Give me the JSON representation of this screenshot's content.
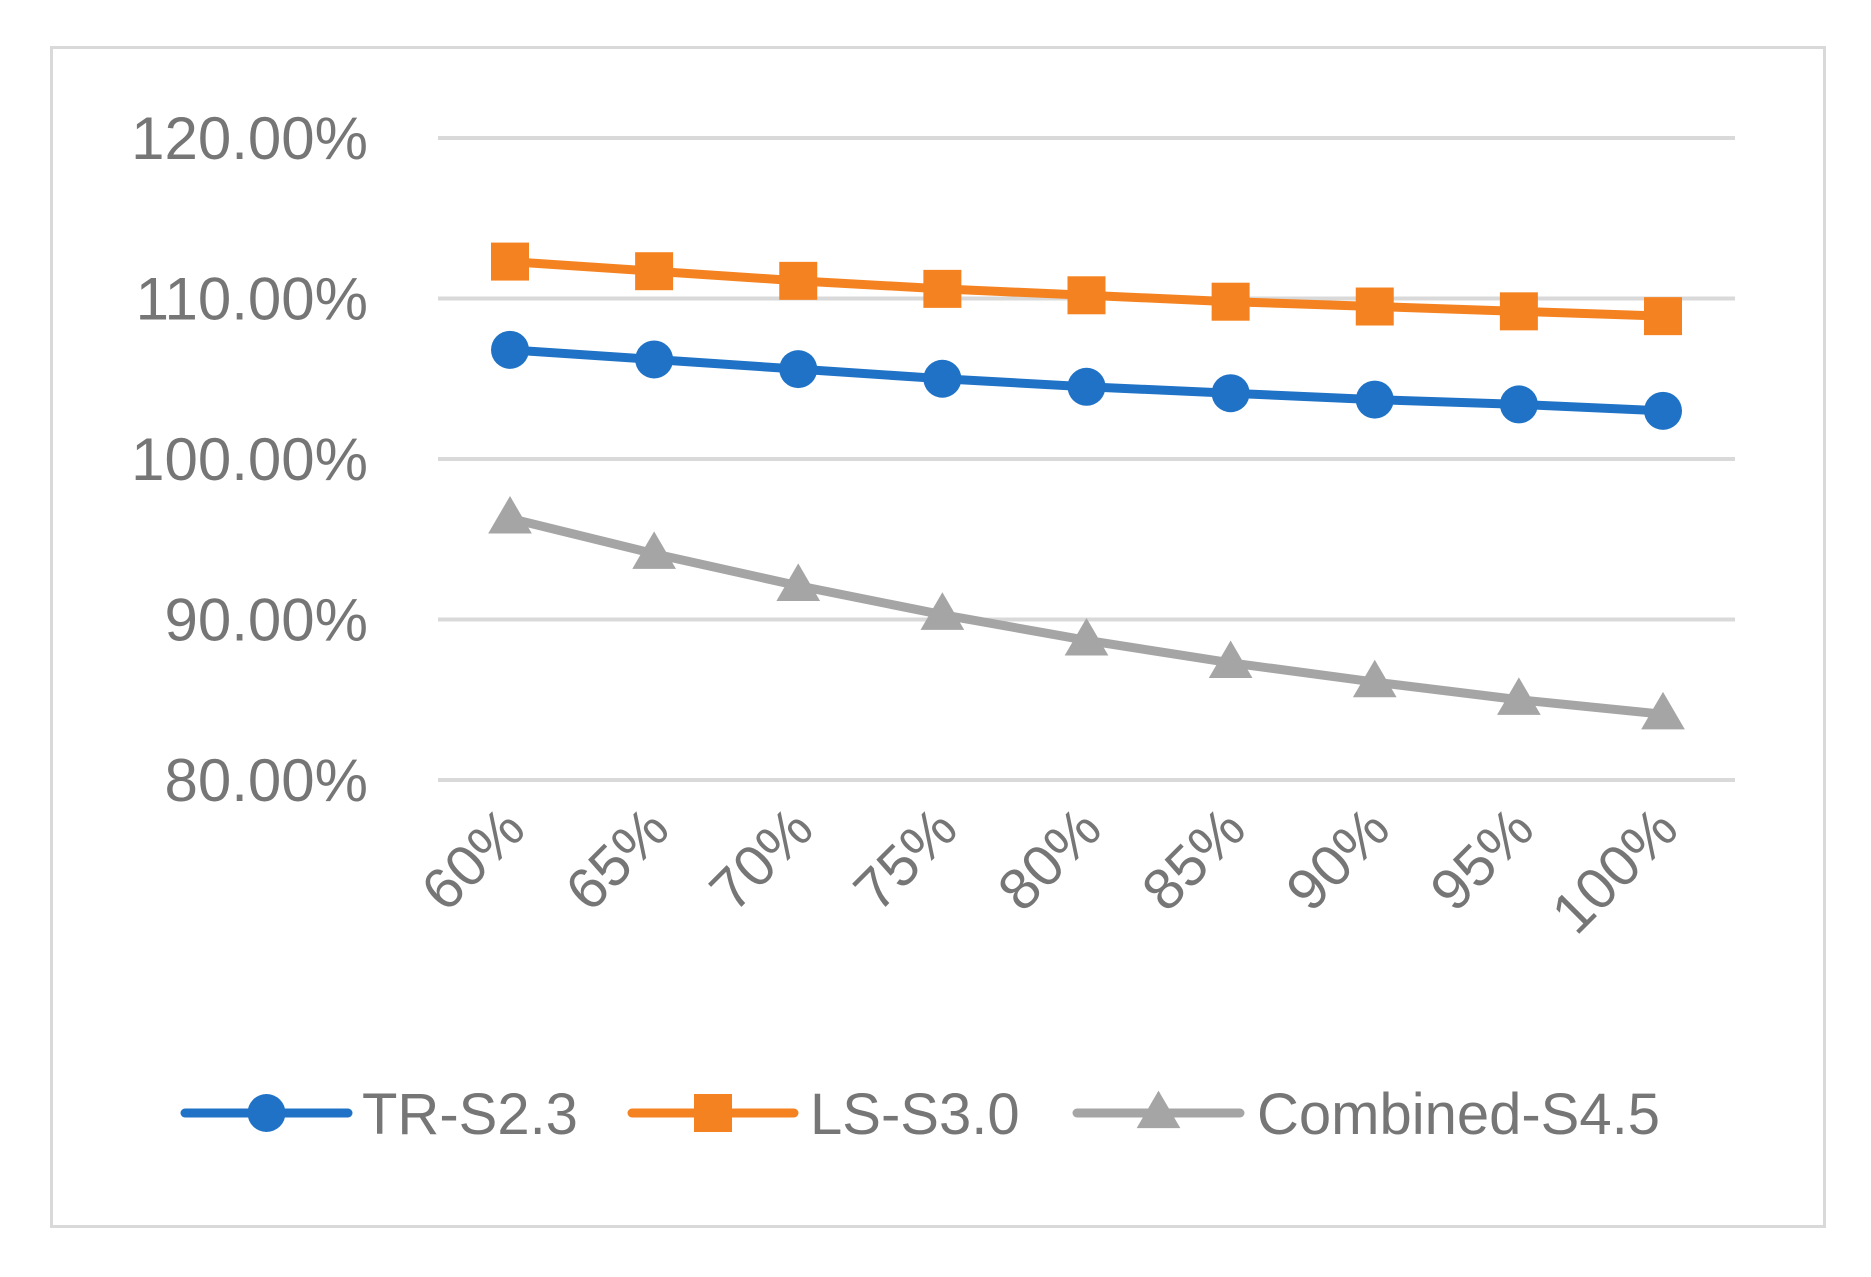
{
  "chart_data": {
    "type": "line",
    "title": "",
    "xlabel": "",
    "ylabel": "",
    "categories": [
      "60%",
      "65%",
      "70%",
      "75%",
      "80%",
      "85%",
      "90%",
      "95%",
      "100%"
    ],
    "ylim": [
      0.8,
      1.2
    ],
    "yticks": [
      0.8,
      0.9,
      1.0,
      1.1,
      1.2
    ],
    "ytick_labels": [
      "80.00%",
      "90.00%",
      "100.00%",
      "110.00%",
      "120.00%"
    ],
    "grid": true,
    "legend_position": "bottom",
    "series": [
      {
        "name": "TR-S2.3",
        "marker": "circle",
        "color": "#1f72c6",
        "values": [
          1.068,
          1.062,
          1.056,
          1.05,
          1.045,
          1.041,
          1.037,
          1.034,
          1.03
        ]
      },
      {
        "name": "LS-S3.0",
        "marker": "square",
        "color": "#f58220",
        "values": [
          1.123,
          1.117,
          1.111,
          1.106,
          1.102,
          1.098,
          1.095,
          1.092,
          1.089
        ]
      },
      {
        "name": "Combined-S4.5",
        "marker": "triangle",
        "color": "#a5a5a5",
        "values": [
          0.963,
          0.941,
          0.921,
          0.903,
          0.887,
          0.873,
          0.861,
          0.85,
          0.841
        ]
      }
    ]
  }
}
